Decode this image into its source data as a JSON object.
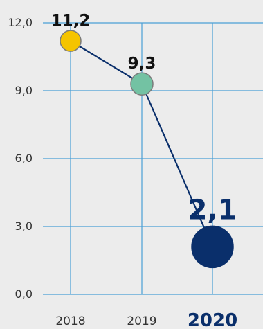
{
  "chart_data": {
    "type": "line",
    "categories": [
      "2018",
      "2019",
      "2020"
    ],
    "values": [
      11.2,
      9.3,
      2.1
    ],
    "data_labels": [
      "11,2",
      "9,3",
      "2,1"
    ],
    "y_ticks": [
      0,
      3,
      6,
      9,
      12
    ],
    "y_tick_labels": [
      "0,0",
      "3,0",
      "6,0",
      "9,0",
      "12,0"
    ],
    "ylim": [
      0,
      12
    ],
    "highlight_category": "2020",
    "grid": true,
    "colors": {
      "background": "#ececec",
      "grid": "#4a9fd6",
      "line": "#0a2f6b",
      "points": [
        "#f5c400",
        "#73c2a3",
        "#0a2f6b"
      ],
      "point_stroke": "#7a7a7a",
      "highlight_text": "#0a2f6b"
    }
  }
}
